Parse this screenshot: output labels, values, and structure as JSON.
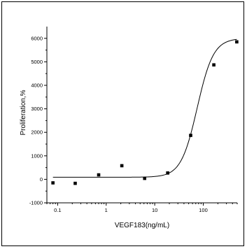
{
  "chart_data": {
    "type": "scatter",
    "xlabel": "VEGF183(ng/mL)",
    "ylabel": "Proliferation,%",
    "x_scale": "log",
    "xlim": [
      0.06,
      500
    ],
    "ylim": [
      -1000,
      6500
    ],
    "x_ticks": [
      0.1,
      1,
      10,
      100
    ],
    "x_tick_labels": [
      "0.1",
      "1",
      "10",
      "100"
    ],
    "y_ticks": [
      -1000,
      0,
      1000,
      2000,
      3000,
      4000,
      5000,
      6000
    ],
    "y_tick_labels": [
      "-1000",
      "0",
      "1000",
      "2000",
      "3000",
      "4000",
      "5000",
      "6000"
    ],
    "grid": false,
    "legend": "none",
    "series": [
      {
        "kind": "points",
        "marker": "square",
        "color": "#000000",
        "x": [
          0.08,
          0.23,
          0.7,
          2.1,
          6.2,
          18.5,
          55,
          165,
          490
        ],
        "y": [
          -150,
          -170,
          190,
          580,
          40,
          270,
          1870,
          4870,
          5850
        ]
      },
      {
        "kind": "fit-curve",
        "color": "#000000",
        "model": "sigmoid-log",
        "params": {
          "bottom": 90,
          "top": 6000,
          "ec50": 75,
          "hill": 2.6
        }
      }
    ]
  }
}
